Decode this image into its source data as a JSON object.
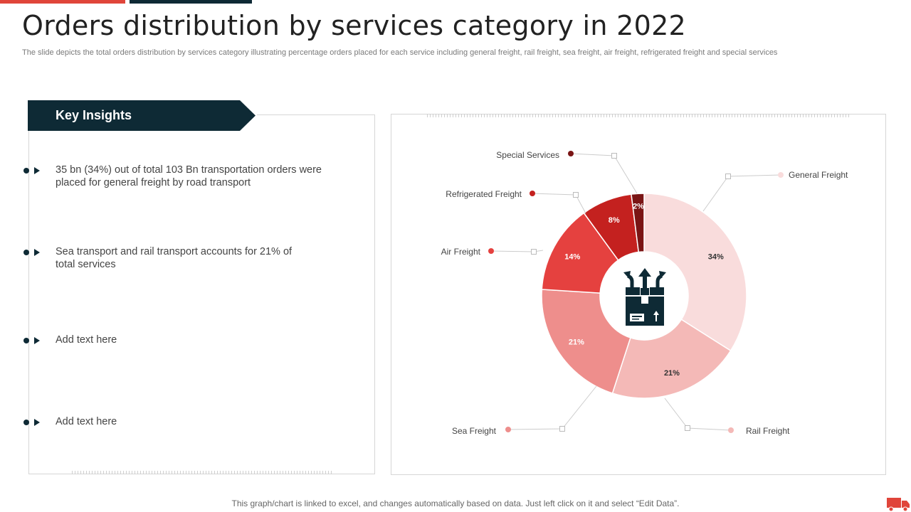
{
  "header": {
    "title": "Orders distribution by services category in 2022",
    "subtitle": "The slide depicts the total orders distribution by services category illustrating percentage orders placed for each service including general freight, rail freight, sea freight, air freight, refrigerated freight and special services"
  },
  "insights": {
    "heading": "Key Insights",
    "items": [
      {
        "text": "35 bn (34%) out of total 103 Bn transportation orders were placed for general freight by road transport"
      },
      {
        "text": "Sea transport and rail transport accounts for 21% of total services"
      },
      {
        "text": "Add text here"
      },
      {
        "text": "Add text here"
      }
    ]
  },
  "chart_data": {
    "type": "pie",
    "variant": "donut",
    "title": "",
    "center_icon": "box-with-arrows-icon",
    "slices": [
      {
        "label": "General Freight",
        "value": 34,
        "display": "34%",
        "color": "#f9dcdc",
        "text_color": "#333333"
      },
      {
        "label": "Rail Freight",
        "value": 21,
        "display": "21%",
        "color": "#f4b9b7",
        "text_color": "#333333"
      },
      {
        "label": "Sea Freight",
        "value": 21,
        "display": "21%",
        "color": "#ee8e8c",
        "text_color": "#ffffff"
      },
      {
        "label": "Air Freight",
        "value": 14,
        "display": "14%",
        "color": "#e5413f",
        "text_color": "#ffffff"
      },
      {
        "label": "Refrigerated Freight",
        "value": 8,
        "display": "8%",
        "color": "#c4211f",
        "text_color": "#ffffff"
      },
      {
        "label": "Special Services",
        "value": 2,
        "display": "2%",
        "color": "#7a1515",
        "text_color": "#ffffff"
      }
    ]
  },
  "footer": {
    "note": "This graph/chart is linked to excel,  and changes automatically based on data. Just left click on it and select “Edit Data”."
  },
  "colors": {
    "accent_red": "#e0453a",
    "dark_teal": "#0e2a35"
  }
}
